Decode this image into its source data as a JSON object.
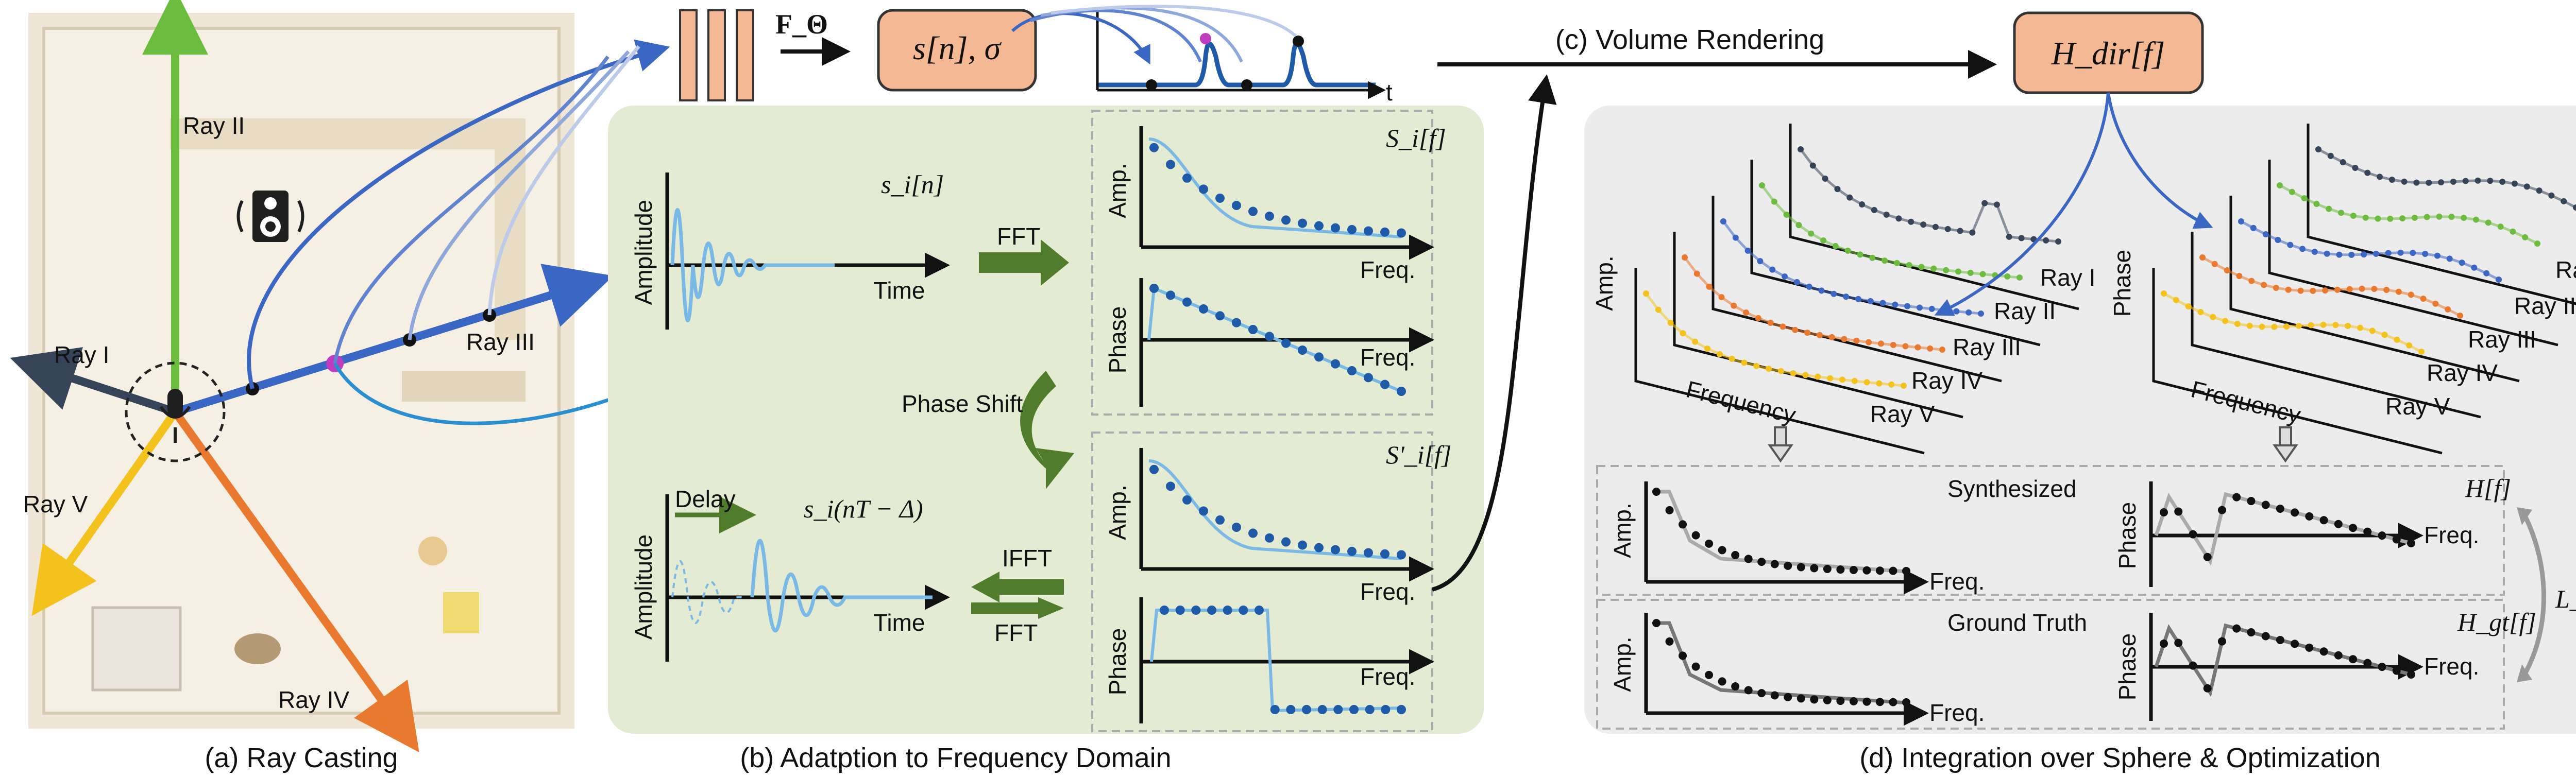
{
  "panels": {
    "a": {
      "caption": "(a) Ray Casting",
      "rays": [
        "Ray I",
        "Ray II",
        "Ray III",
        "Ray IV",
        "Ray V"
      ]
    },
    "b": {
      "caption": "(b) Adatption to Frequency Domain",
      "network_label": "F_Θ",
      "output_label": "s[n], σ",
      "plot_t_label": "t",
      "signal_top": "s_i[n]",
      "signal_bottom": "s_i(nT − Δ)",
      "amplitude_label": "Amplitude",
      "time_label": "Time",
      "fft_label": "FFT",
      "ifft_label": "IFFT",
      "phase_shift_label": "Phase Shift",
      "delay_label": "Delay",
      "spec_top": "S_i[f]",
      "spec_bottom": "S'_i[f]",
      "amp_label": "Amp.",
      "phase_label": "Phase",
      "freq_label": "Freq."
    },
    "c": {
      "caption": "(c) Volume Rendering",
      "output_label": "H_dir[f]"
    },
    "d": {
      "caption": "(d) Integration over Sphere & Optimization",
      "amp_label": "Amp.",
      "phase_label": "Phase",
      "frequency_label": "Frequency",
      "ray_labels": [
        "Ray I",
        "Ray II",
        "Ray III",
        "Ray IV",
        "Ray V"
      ],
      "synth_label": "Synthesized",
      "gt_label": "Ground Truth",
      "h_label": "H[f]",
      "hgt_label": "H_gt[f]",
      "loss_label": "L_total",
      "freq_label": "Freq."
    }
  },
  "colors": {
    "peach": "#f5b895",
    "green_panel": "#e3ecd2",
    "gray_panel": "#ececec",
    "blue": "#3a66c4",
    "light_blue": "#7ab8e6",
    "dark_blue": "#1f5aa8",
    "dot_blue": "#2a73c9",
    "arrow_green": "#4f7d2c",
    "ray_green": "#6cbd3f",
    "ray_orange": "#e8792e",
    "ray_yellow": "#f4c21c",
    "ray_dark": "#36445a",
    "magenta": "#c23cc0"
  }
}
